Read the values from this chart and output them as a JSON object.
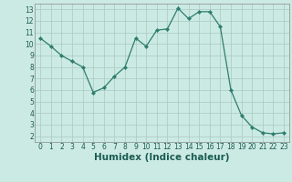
{
  "x": [
    0,
    1,
    2,
    3,
    4,
    5,
    6,
    7,
    8,
    9,
    10,
    11,
    12,
    13,
    14,
    15,
    16,
    17,
    18,
    19,
    20,
    21,
    22,
    23
  ],
  "y": [
    10.5,
    9.8,
    9.0,
    8.5,
    8.0,
    5.8,
    6.2,
    7.2,
    8.0,
    10.5,
    9.8,
    11.2,
    11.3,
    13.1,
    12.2,
    12.8,
    12.8,
    11.5,
    6.0,
    3.8,
    2.8,
    2.3,
    2.2,
    2.3
  ],
  "line_color": "#2e7d6e",
  "marker": "D",
  "marker_size": 2.2,
  "bg_color": "#cceae4",
  "grid_color": "#aac8c2",
  "xlabel": "Humidex (Indice chaleur)",
  "ylim": [
    1.5,
    13.5
  ],
  "xlim": [
    -0.5,
    23.5
  ],
  "yticks": [
    2,
    3,
    4,
    5,
    6,
    7,
    8,
    9,
    10,
    11,
    12,
    13
  ],
  "xticks": [
    0,
    1,
    2,
    3,
    4,
    5,
    6,
    7,
    8,
    9,
    10,
    11,
    12,
    13,
    14,
    15,
    16,
    17,
    18,
    19,
    20,
    21,
    22,
    23
  ],
  "tick_fontsize": 5.5,
  "xlabel_fontsize": 7.5,
  "label_color": "#1a5c52",
  "spine_color": "#888888"
}
